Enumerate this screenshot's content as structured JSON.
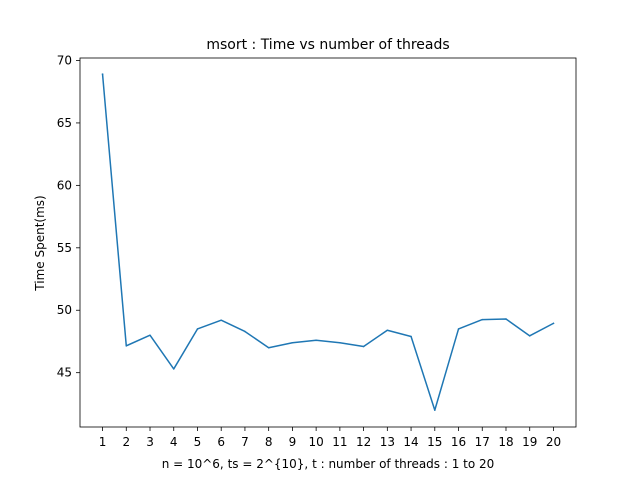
{
  "chart_data": {
    "type": "line",
    "title": "msort : Time vs number of threads",
    "xlabel": "n = 10^6, ts = 2^{10}, t : number of threads : 1 to 20",
    "ylabel": "Time Spent(ms)",
    "x": [
      1,
      2,
      3,
      4,
      5,
      6,
      7,
      8,
      9,
      10,
      11,
      12,
      13,
      14,
      15,
      16,
      17,
      18,
      19,
      20
    ],
    "series": [
      {
        "values": [
          68.9,
          47.15,
          48.0,
          45.3,
          48.5,
          49.2,
          48.3,
          47.0,
          47.4,
          47.6,
          47.4,
          47.1,
          48.4,
          47.9,
          42.0,
          48.5,
          49.25,
          49.3,
          47.95,
          48.95
        ],
        "color": "#1f77b4"
      }
    ],
    "xlim": [
      0.05,
      20.95
    ],
    "ylim": [
      40.65,
      70.2
    ],
    "yticks": [
      45,
      50,
      55,
      60,
      65,
      70
    ],
    "xticks": [
      1,
      2,
      3,
      4,
      5,
      6,
      7,
      8,
      9,
      10,
      11,
      12,
      13,
      14,
      15,
      16,
      17,
      18,
      19,
      20
    ],
    "grid": false,
    "legend": "none"
  }
}
